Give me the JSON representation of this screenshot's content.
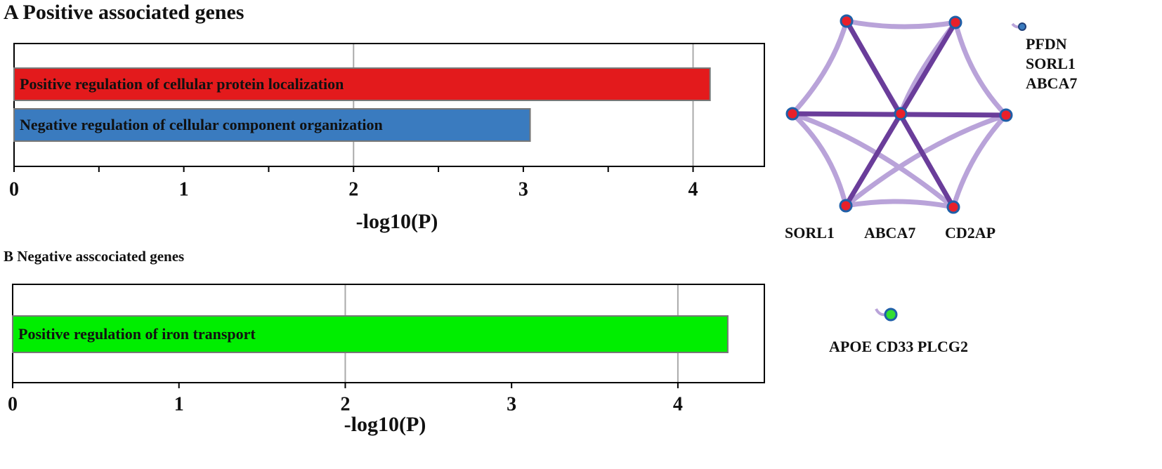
{
  "chart_data": [
    {
      "type": "bar",
      "orientation": "horizontal",
      "title": "A Positive associated genes",
      "categories": [
        "Positive regulation of cellular protein localization",
        "Negative regulation of cellular component organization"
      ],
      "values": [
        4.1,
        3.04
      ],
      "colors": [
        "#e31a1c",
        "#3a7bbf"
      ],
      "xlabel": "-log10(P)",
      "xlim": [
        0,
        4.42
      ],
      "xticks": [
        0,
        1,
        2,
        3,
        4
      ],
      "xminorticks": [
        0.5,
        1.5,
        2.5,
        3.5
      ],
      "gridlines": [
        2,
        4
      ],
      "network_labels": [
        "PFDN",
        "SORL1",
        "ABCA7",
        "SORL1",
        "ABCA7",
        "CD2AP"
      ]
    },
    {
      "type": "bar",
      "orientation": "horizontal",
      "title": "B Negative asscociated genes",
      "categories": [
        "Positive regulation of iron transport"
      ],
      "values": [
        4.3
      ],
      "colors": [
        "#00ee00"
      ],
      "xlabel": "-log10(P)",
      "xlim": [
        0,
        4.52
      ],
      "xticks": [
        0,
        1,
        2,
        3,
        4
      ],
      "xminorticks": [],
      "gridlines": [
        2,
        4
      ],
      "network_labels": [
        "APOE CD33 PLCG2"
      ]
    }
  ]
}
